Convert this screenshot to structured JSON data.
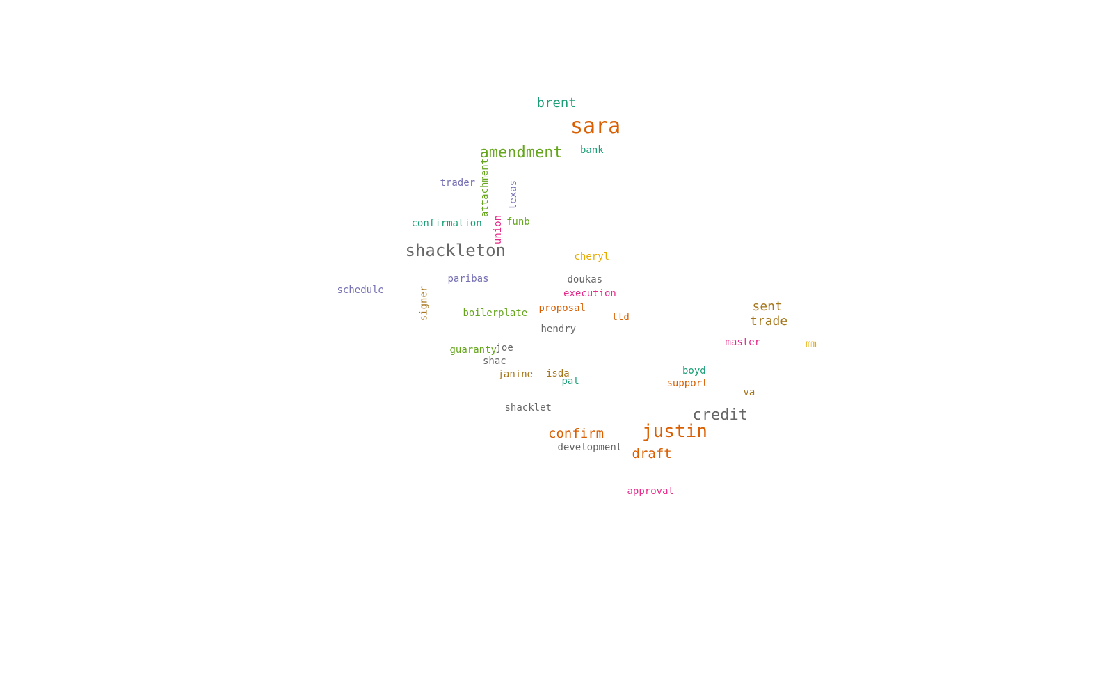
{
  "words": {
    "sara": {
      "text": "sara",
      "color": "#d95f02"
    },
    "shackleton": {
      "text": "shackleton",
      "color": "#666666"
    },
    "justin": {
      "text": "justin",
      "color": "#d95f02"
    },
    "amendment": {
      "text": "amendment",
      "color": "#66a61e"
    },
    "credit": {
      "text": "credit",
      "color": "#666666"
    },
    "brent": {
      "text": "brent",
      "color": "#1b9e77"
    },
    "confirm": {
      "text": "confirm",
      "color": "#d95f02"
    },
    "draft": {
      "text": "draft",
      "color": "#d95f02"
    },
    "sent": {
      "text": "sent",
      "color": "#a6761d"
    },
    "trade": {
      "text": "trade",
      "color": "#a6761d"
    },
    "trader": {
      "text": "trader",
      "color": "#7570b3"
    },
    "bank": {
      "text": "bank",
      "color": "#1b9e77"
    },
    "attachment": {
      "text": "attachment",
      "color": "#66a61e"
    },
    "texas": {
      "text": "texas",
      "color": "#7570b3"
    },
    "confirmation": {
      "text": "confirmation",
      "color": "#1b9e77"
    },
    "union": {
      "text": "union",
      "color": "#e7298a"
    },
    "funb": {
      "text": "funb",
      "color": "#66a61e"
    },
    "cheryl": {
      "text": "cheryl",
      "color": "#e6ab02"
    },
    "paribas": {
      "text": "paribas",
      "color": "#7570b3"
    },
    "doukas": {
      "text": "doukas",
      "color": "#666666"
    },
    "schedule": {
      "text": "schedule",
      "color": "#7570b3"
    },
    "execution": {
      "text": "execution",
      "color": "#e7298a"
    },
    "signer": {
      "text": "signer",
      "color": "#a6761d"
    },
    "boilerplate": {
      "text": "boilerplate",
      "color": "#66a61e"
    },
    "proposal": {
      "text": "proposal",
      "color": "#d95f02"
    },
    "ltd": {
      "text": "ltd",
      "color": "#d95f02"
    },
    "hendry": {
      "text": "hendry",
      "color": "#666666"
    },
    "master": {
      "text": "master",
      "color": "#e7298a"
    },
    "mm": {
      "text": "mm",
      "color": "#e6ab02"
    },
    "guaranty": {
      "text": "guaranty",
      "color": "#66a61e"
    },
    "joe": {
      "text": "joe",
      "color": "#666666"
    },
    "shac": {
      "text": "shac",
      "color": "#666666"
    },
    "janine": {
      "text": "janine",
      "color": "#a6761d"
    },
    "isda": {
      "text": "isda",
      "color": "#a6761d"
    },
    "boyd": {
      "text": "boyd",
      "color": "#1b9e77"
    },
    "pat": {
      "text": "pat",
      "color": "#1b9e77"
    },
    "support": {
      "text": "support",
      "color": "#d95f02"
    },
    "va": {
      "text": "va",
      "color": "#a6761d"
    },
    "shacklet": {
      "text": "shacklet",
      "color": "#666666"
    },
    "development": {
      "text": "development",
      "color": "#666666"
    },
    "approval": {
      "text": "approval",
      "color": "#e7298a"
    }
  }
}
